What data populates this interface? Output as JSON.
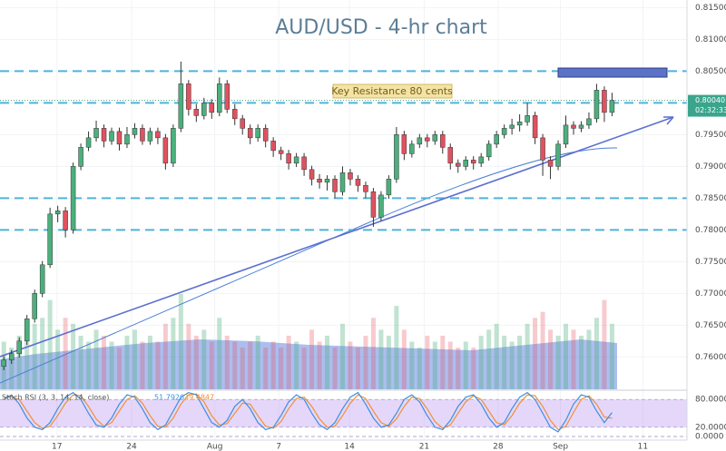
{
  "chart_data": {
    "type": "candlestick",
    "title": "AUD/USD - 4-hr chart",
    "up_color": "#4caf7d",
    "down_color": "#e0525f",
    "ohlc": [
      [
        0.7585,
        0.7601,
        0.7579,
        0.7595
      ],
      [
        0.7595,
        0.7611,
        0.7589,
        0.7605
      ],
      [
        0.7605,
        0.7631,
        0.7599,
        0.7625
      ],
      [
        0.7625,
        0.7666,
        0.7619,
        0.766
      ],
      [
        0.766,
        0.7706,
        0.7654,
        0.77
      ],
      [
        0.77,
        0.7751,
        0.7694,
        0.7745
      ],
      [
        0.7745,
        0.7835,
        0.774,
        0.7825
      ],
      [
        0.7825,
        0.7838,
        0.7812,
        0.783
      ],
      [
        0.783,
        0.7836,
        0.7788,
        0.78
      ],
      [
        0.78,
        0.7906,
        0.7794,
        0.79
      ],
      [
        0.79,
        0.7936,
        0.7894,
        0.793
      ],
      [
        0.793,
        0.7955,
        0.7924,
        0.7945
      ],
      [
        0.7945,
        0.7972,
        0.7939,
        0.796
      ],
      [
        0.796,
        0.7966,
        0.793,
        0.794
      ],
      [
        0.794,
        0.7961,
        0.7934,
        0.7955
      ],
      [
        0.7955,
        0.7961,
        0.7925,
        0.7935
      ],
      [
        0.7935,
        0.7962,
        0.7929,
        0.795
      ],
      [
        0.795,
        0.7968,
        0.7944,
        0.796
      ],
      [
        0.796,
        0.7966,
        0.7934,
        0.794
      ],
      [
        0.794,
        0.7961,
        0.7934,
        0.7955
      ],
      [
        0.7955,
        0.7961,
        0.7935,
        0.7945
      ],
      [
        0.7945,
        0.7951,
        0.7895,
        0.7905
      ],
      [
        0.7905,
        0.7966,
        0.7899,
        0.796
      ],
      [
        0.796,
        0.8065,
        0.7954,
        0.803
      ],
      [
        0.803,
        0.8036,
        0.798,
        0.799
      ],
      [
        0.799,
        0.7998,
        0.797,
        0.798
      ],
      [
        0.798,
        0.8008,
        0.7974,
        0.8
      ],
      [
        0.8,
        0.8006,
        0.7975,
        0.7985
      ],
      [
        0.7985,
        0.804,
        0.7979,
        0.803
      ],
      [
        0.803,
        0.8036,
        0.7984,
        0.799
      ],
      [
        0.799,
        0.7998,
        0.7965,
        0.7975
      ],
      [
        0.7975,
        0.7981,
        0.795,
        0.796
      ],
      [
        0.796,
        0.7966,
        0.7935,
        0.7945
      ],
      [
        0.7945,
        0.7966,
        0.7939,
        0.796
      ],
      [
        0.796,
        0.7966,
        0.793,
        0.794
      ],
      [
        0.794,
        0.7946,
        0.7915,
        0.7925
      ],
      [
        0.7925,
        0.7931,
        0.791,
        0.792
      ],
      [
        0.792,
        0.7926,
        0.7895,
        0.7905
      ],
      [
        0.7905,
        0.7921,
        0.7899,
        0.7915
      ],
      [
        0.7915,
        0.7921,
        0.7885,
        0.7895
      ],
      [
        0.7895,
        0.7901,
        0.787,
        0.788
      ],
      [
        0.788,
        0.7888,
        0.7865,
        0.7875
      ],
      [
        0.7875,
        0.7886,
        0.7862,
        0.788
      ],
      [
        0.788,
        0.7886,
        0.785,
        0.786
      ],
      [
        0.786,
        0.79,
        0.7854,
        0.789
      ],
      [
        0.789,
        0.7896,
        0.787,
        0.788
      ],
      [
        0.788,
        0.7886,
        0.786,
        0.787
      ],
      [
        0.787,
        0.7876,
        0.785,
        0.786
      ],
      [
        0.786,
        0.7866,
        0.7805,
        0.782
      ],
      [
        0.782,
        0.7861,
        0.7814,
        0.7855
      ],
      [
        0.7855,
        0.7886,
        0.7849,
        0.788
      ],
      [
        0.788,
        0.7962,
        0.7874,
        0.795
      ],
      [
        0.795,
        0.7956,
        0.791,
        0.792
      ],
      [
        0.792,
        0.7941,
        0.7914,
        0.7935
      ],
      [
        0.7935,
        0.7951,
        0.7929,
        0.7945
      ],
      [
        0.7945,
        0.7951,
        0.793,
        0.794
      ],
      [
        0.794,
        0.7956,
        0.7934,
        0.795
      ],
      [
        0.795,
        0.7956,
        0.792,
        0.793
      ],
      [
        0.793,
        0.7936,
        0.7895,
        0.7905
      ],
      [
        0.7905,
        0.7911,
        0.789,
        0.79
      ],
      [
        0.79,
        0.7916,
        0.7894,
        0.791
      ],
      [
        0.791,
        0.7916,
        0.7895,
        0.7905
      ],
      [
        0.7905,
        0.7921,
        0.7899,
        0.7915
      ],
      [
        0.7915,
        0.7941,
        0.7909,
        0.7935
      ],
      [
        0.7935,
        0.7956,
        0.7929,
        0.795
      ],
      [
        0.795,
        0.7966,
        0.7944,
        0.796
      ],
      [
        0.796,
        0.7975,
        0.795,
        0.7965
      ],
      [
        0.7965,
        0.7982,
        0.7955,
        0.797
      ],
      [
        0.797,
        0.8,
        0.7964,
        0.798
      ],
      [
        0.798,
        0.7986,
        0.7935,
        0.7945
      ],
      [
        0.7945,
        0.7951,
        0.7885,
        0.791
      ],
      [
        0.791,
        0.7916,
        0.788,
        0.79
      ],
      [
        0.79,
        0.7941,
        0.7894,
        0.7935
      ],
      [
        0.7935,
        0.798,
        0.7929,
        0.7965
      ],
      [
        0.7965,
        0.7971,
        0.795,
        0.796
      ],
      [
        0.796,
        0.7971,
        0.7954,
        0.7965
      ],
      [
        0.7965,
        0.7985,
        0.7959,
        0.7975
      ],
      [
        0.7975,
        0.803,
        0.7969,
        0.802
      ],
      [
        0.802,
        0.8026,
        0.797,
        0.7985
      ],
      [
        0.7985,
        0.8016,
        0.7979,
        0.8004
      ]
    ],
    "volume": [
      40,
      35,
      45,
      50,
      55,
      60,
      75,
      50,
      60,
      55,
      45,
      40,
      50,
      45,
      40,
      35,
      45,
      50,
      40,
      45,
      40,
      55,
      60,
      80,
      55,
      45,
      50,
      40,
      60,
      45,
      40,
      35,
      40,
      45,
      35,
      40,
      35,
      45,
      40,
      35,
      50,
      40,
      45,
      35,
      55,
      40,
      35,
      45,
      60,
      50,
      45,
      70,
      50,
      40,
      35,
      45,
      40,
      45,
      40,
      35,
      40,
      35,
      45,
      50,
      55,
      45,
      40,
      45,
      55,
      60,
      65,
      50,
      45,
      55,
      50,
      45,
      50,
      60,
      75,
      55
    ],
    "xlim": [
      -0.5,
      88.5
    ],
    "xticks": [
      {
        "value": 6.9,
        "label": "17"
      },
      {
        "value": 16.6,
        "label": "24"
      },
      {
        "value": 27.4,
        "label": "Aug"
      },
      {
        "value": 35.7,
        "label": "7"
      },
      {
        "value": 44.9,
        "label": "14"
      },
      {
        "value": 54.6,
        "label": "21"
      },
      {
        "value": 64.2,
        "label": "28"
      },
      {
        "value": 72.3,
        "label": "Sep"
      },
      {
        "value": 83,
        "label": "11"
      }
    ],
    "ylim": [
      0.7549,
      0.8162
    ],
    "yticks": [
      {
        "value": 0.815,
        "label": "0.81500"
      },
      {
        "value": 0.81,
        "label": "0.81000"
      },
      {
        "value": 0.805,
        "label": "0.80500"
      },
      {
        "value": 0.8,
        "label": "0.80000"
      },
      {
        "value": 0.795,
        "label": "0.79500"
      },
      {
        "value": 0.79,
        "label": "0.79000"
      },
      {
        "value": 0.785,
        "label": "0.78500"
      },
      {
        "value": 0.78,
        "label": "0.78000"
      },
      {
        "value": 0.775,
        "label": "0.77500"
      },
      {
        "value": 0.77,
        "label": "0.77000"
      },
      {
        "value": 0.765,
        "label": "0.76500"
      },
      {
        "value": 0.76,
        "label": "0.76000"
      }
    ],
    "levels": [
      0.805,
      0.8,
      0.785,
      0.78
    ],
    "level_color": "#4fb3d9",
    "last_price": {
      "value": 0.8004,
      "label": "0.80040"
    },
    "countdown": "02:32:33",
    "annotation": "Key Resistance 80 cents",
    "stoch": {
      "label": "Stoch RSI (3, 3, 14, 14, close)",
      "ylim": [
        -7.8,
        100
      ],
      "yticks": [
        {
          "value": 80,
          "label": "80.0000"
        },
        {
          "value": 20,
          "label": "20.0000"
        },
        {
          "value": 0,
          "label": "0.0000"
        }
      ],
      "k": {
        "color": "#3d8fe0",
        "values": [
          80,
          90,
          70,
          40,
          20,
          15,
          30,
          60,
          85,
          95,
          80,
          50,
          25,
          20,
          40,
          70,
          90,
          85,
          60,
          30,
          15,
          25,
          55,
          85,
          95,
          90,
          60,
          30,
          20,
          35,
          65,
          80,
          60,
          30,
          15,
          20,
          45,
          75,
          90,
          80,
          50,
          25,
          15,
          30,
          60,
          85,
          95,
          70,
          40,
          20,
          25,
          50,
          80,
          90,
          75,
          45,
          20,
          15,
          35,
          65,
          85,
          90,
          70,
          40,
          20,
          30,
          60,
          85,
          95,
          80,
          50,
          20,
          10,
          35,
          70,
          90,
          85,
          55,
          30,
          51.7926
        ]
      },
      "d": {
        "color": "#f0903a",
        "values": [
          85,
          85,
          80,
          55,
          30,
          18,
          22,
          45,
          72,
          90,
          88,
          65,
          38,
          22,
          30,
          55,
          80,
          88,
          72,
          45,
          22,
          20,
          40,
          70,
          90,
          92,
          75,
          45,
          25,
          28,
          50,
          72,
          70,
          45,
          22,
          18,
          32,
          60,
          82,
          85,
          65,
          38,
          20,
          22,
          45,
          72,
          90,
          82,
          55,
          30,
          22,
          38,
          65,
          85,
          82,
          60,
          32,
          18,
          25,
          50,
          75,
          88,
          80,
          55,
          30,
          25,
          45,
          72,
          90,
          88,
          65,
          35,
          15,
          22,
          52,
          80,
          88,
          70,
          42,
          39.4847
        ]
      }
    }
  }
}
